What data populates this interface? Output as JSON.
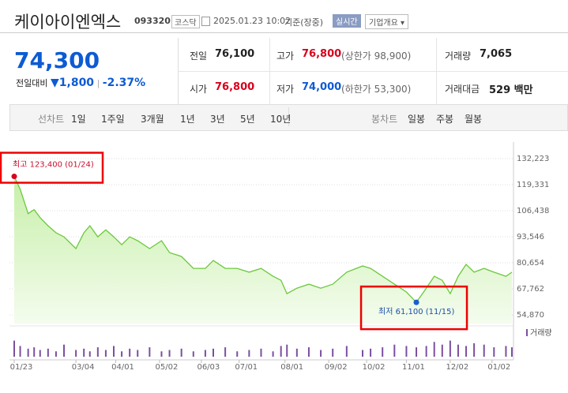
{
  "header": {
    "name": "케이아이엔엑스",
    "code": "093320",
    "market": "코스닥",
    "datetime": "2025.01.23 10:02",
    "status": "기준(장중)",
    "realtime": "실시간",
    "company_button": "기업개요"
  },
  "quote": {
    "price": "74,300",
    "change_label": "전일대비",
    "change": "1,800",
    "change_rate": "-2.37%",
    "items": [
      {
        "label": "전일",
        "value": "76,100"
      },
      {
        "label": "고가",
        "value": "76,800",
        "note": "(상한가 98,900)"
      },
      {
        "label": "거래량",
        "value": "7,065"
      },
      {
        "label": "시가",
        "value": "76,800"
      },
      {
        "label": "저가",
        "value": "74,000",
        "note": "(하한가 53,300)"
      },
      {
        "label": "거래대금",
        "value": "529 백만"
      }
    ]
  },
  "tabs": {
    "line_label": "선차트",
    "line_periods": [
      "1일",
      "1주일",
      "3개월",
      "1년",
      "3년",
      "5년",
      "10년"
    ],
    "selected_period": 3,
    "candle_label": "봉차트",
    "candle_periods": [
      "일봉",
      "주봉",
      "월봉"
    ]
  },
  "chart_data": {
    "type": "line",
    "x": [
      0,
      3,
      7,
      10,
      13,
      17,
      21,
      25,
      31,
      35,
      38,
      42,
      46,
      50,
      54,
      58,
      62,
      68,
      74,
      78,
      84,
      90,
      96,
      100,
      106,
      112,
      118,
      124,
      130,
      134,
      137,
      142,
      148,
      154,
      160,
      167,
      175,
      179,
      185,
      191,
      197,
      202,
      207,
      211,
      215,
      219,
      223,
      227,
      231,
      236,
      241,
      247,
      250
    ],
    "series": [
      {
        "color": "#6cc83c",
        "values": [
          123400,
          117000,
          105000,
          107000,
          103000,
          99000,
          95500,
          93500,
          87700,
          95500,
          99000,
          93500,
          97000,
          93500,
          89600,
          93500,
          91600,
          87700,
          91600,
          85700,
          83800,
          77900,
          77900,
          81800,
          77900,
          77900,
          76000,
          77900,
          74000,
          72000,
          65400,
          68100,
          70100,
          68100,
          70100,
          76000,
          79100,
          77900,
          74000,
          70100,
          66200,
          61100,
          68100,
          74000,
          72000,
          65400,
          74000,
          79900,
          76000,
          77900,
          76000,
          74000,
          76000
        ]
      },
      {
        "name": "거래량",
        "color": "#7b4fa0",
        "axis": "y2",
        "values": [
          60,
          40,
          30,
          35,
          25,
          30,
          20,
          45,
          25,
          30,
          20,
          35,
          25,
          40,
          20,
          30,
          25,
          35,
          20,
          25,
          30,
          20,
          25,
          30,
          35,
          20,
          25,
          30,
          20,
          40,
          45,
          30,
          35,
          25,
          30,
          40,
          25,
          30,
          35,
          45,
          40,
          35,
          40,
          55,
          45,
          60,
          45,
          40,
          50,
          45,
          35,
          40,
          35
        ]
      }
    ],
    "annotations": {
      "high": "최고 123,400 (01/24)",
      "low": "최저 61,100 (11/15)"
    },
    "xlim": [
      0,
      250
    ],
    "xticks": [
      {
        "value": 0,
        "label": "01/23"
      },
      {
        "value": 31,
        "label": "03/04"
      },
      {
        "value": 51,
        "label": "04/01"
      },
      {
        "value": 73,
        "label": "05/02"
      },
      {
        "value": 94,
        "label": "06/03"
      },
      {
        "value": 113,
        "label": "07/01"
      },
      {
        "value": 136,
        "label": "08/01"
      },
      {
        "value": 158,
        "label": "09/02"
      },
      {
        "value": 177,
        "label": "10/02"
      },
      {
        "value": 197,
        "label": "11/01"
      },
      {
        "value": 219,
        "label": "12/02"
      },
      {
        "value": 240,
        "label": "01/02"
      }
    ],
    "ylim": [
      50600,
      136500
    ],
    "yticks": [
      {
        "value": 132223,
        "label": "132,223"
      },
      {
        "value": 119331,
        "label": "119,331"
      },
      {
        "value": 106438,
        "label": "106,438"
      },
      {
        "value": 93546,
        "label": "93,546"
      },
      {
        "value": 80654,
        "label": "80,654"
      },
      {
        "value": 67762,
        "label": "67,762"
      },
      {
        "value": 54870,
        "label": "54,870"
      }
    ],
    "y2lim": [
      0,
      100
    ],
    "grid": true
  }
}
